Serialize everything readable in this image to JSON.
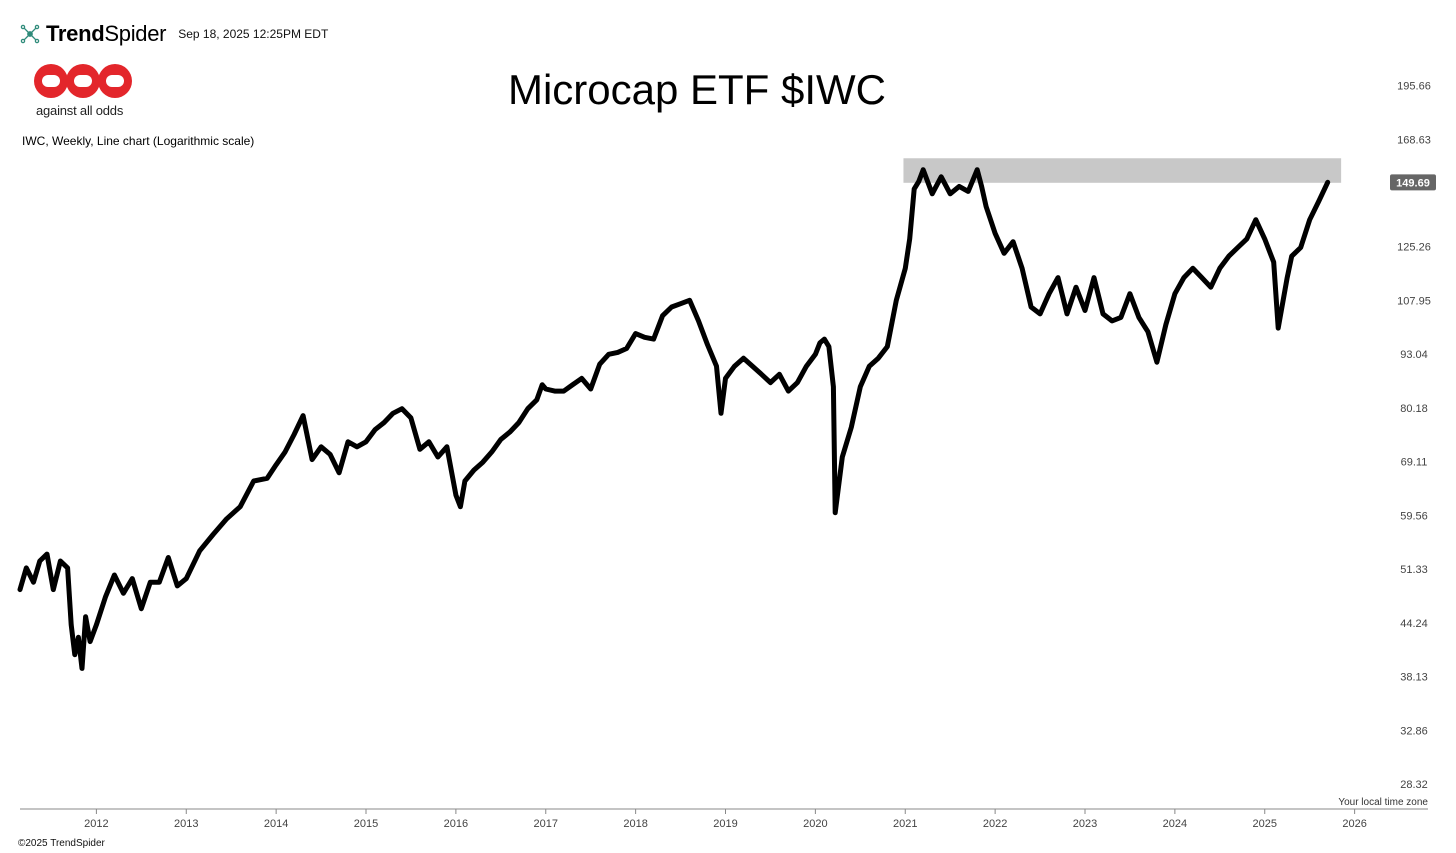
{
  "header": {
    "brand_bold": "Trend",
    "brand_regular": "Spider",
    "date": "Sep 18, 2025 12:25PM EDT",
    "logo_text": "against all odds",
    "logo_color": "#e3262b"
  },
  "footer": {
    "timezone": "Your local time zone",
    "copyright": "©2025 TrendSpider"
  },
  "chart_data": {
    "type": "line",
    "title": "Microcap ETF $IWC",
    "subtitle": "IWC, Weekly, Line chart (Logarithmic scale)",
    "y_scale": "log",
    "ylim": [
      26.5,
      210
    ],
    "y_ticks": [
      "195.66",
      "168.63",
      "125.26",
      "107.95",
      "93.04",
      "80.18",
      "69.11",
      "59.56",
      "51.33",
      "44.24",
      "38.13",
      "32.86",
      "28.32"
    ],
    "x_ticks": [
      "2012",
      "2013",
      "2014",
      "2015",
      "2016",
      "2017",
      "2018",
      "2019",
      "2020",
      "2021",
      "2022",
      "2023",
      "2024",
      "2025",
      "2026"
    ],
    "xlim": [
      2011.15,
      2026.95
    ],
    "last_price": "149.69",
    "line_color": "#000000",
    "badge_color": "#666666",
    "resistance_zone": {
      "x_start": 2020.98,
      "x_end": 2025.85,
      "y_low": 149.5,
      "y_high": 160.0,
      "color": "#c8c8c8"
    },
    "series": [
      {
        "x": [
          2011.15,
          2011.22,
          2011.3,
          2011.37,
          2011.45,
          2011.52,
          2011.6,
          2011.68,
          2011.72,
          2011.76,
          2011.8,
          2011.84,
          2011.88,
          2011.93,
          2012.0,
          2012.1,
          2012.2,
          2012.3,
          2012.4,
          2012.5,
          2012.6,
          2012.7,
          2012.8,
          2012.9,
          2013.0,
          2013.15,
          2013.3,
          2013.45,
          2013.6,
          2013.75,
          2013.9,
          2014.0,
          2014.1,
          2014.2,
          2014.3,
          2014.4,
          2014.5,
          2014.6,
          2014.7,
          2014.8,
          2014.9,
          2015.0,
          2015.1,
          2015.2,
          2015.3,
          2015.4,
          2015.5,
          2015.6,
          2015.7,
          2015.8,
          2015.9,
          2016.0,
          2016.05,
          2016.1,
          2016.2,
          2016.3,
          2016.4,
          2016.5,
          2016.6,
          2016.7,
          2016.8,
          2016.9,
          2016.96,
          2017.0,
          2017.1,
          2017.2,
          2017.3,
          2017.4,
          2017.5,
          2017.6,
          2017.7,
          2017.8,
          2017.9,
          2018.0,
          2018.1,
          2018.2,
          2018.3,
          2018.4,
          2018.5,
          2018.6,
          2018.7,
          2018.8,
          2018.9,
          2018.95,
          2019.0,
          2019.1,
          2019.2,
          2019.3,
          2019.4,
          2019.5,
          2019.6,
          2019.7,
          2019.8,
          2019.9,
          2020.0,
          2020.05,
          2020.1,
          2020.15,
          2020.2,
          2020.22,
          2020.3,
          2020.4,
          2020.5,
          2020.6,
          2020.7,
          2020.8,
          2020.9,
          2021.0,
          2021.05,
          2021.1,
          2021.15,
          2021.2,
          2021.3,
          2021.4,
          2021.5,
          2021.6,
          2021.7,
          2021.8,
          2021.85,
          2021.9,
          2022.0,
          2022.1,
          2022.2,
          2022.3,
          2022.4,
          2022.5,
          2022.6,
          2022.7,
          2022.8,
          2022.9,
          2023.0,
          2023.1,
          2023.2,
          2023.3,
          2023.4,
          2023.5,
          2023.6,
          2023.7,
          2023.8,
          2023.9,
          2024.0,
          2024.1,
          2024.2,
          2024.3,
          2024.4,
          2024.5,
          2024.6,
          2024.7,
          2024.8,
          2024.9,
          2025.0,
          2025.1,
          2025.15,
          2025.25,
          2025.3,
          2025.4,
          2025.5,
          2025.6,
          2025.7
        ],
        "values": [
          48.5,
          51.5,
          49.5,
          52.5,
          53.5,
          48.5,
          52.5,
          51.5,
          44.0,
          40.5,
          42.5,
          39.0,
          45.0,
          42.0,
          44.0,
          47.5,
          50.5,
          48.0,
          50.0,
          46.0,
          49.5,
          49.5,
          53.0,
          49.0,
          50.0,
          54.0,
          56.5,
          59.0,
          61.0,
          65.5,
          66.0,
          68.5,
          71.0,
          74.5,
          78.5,
          69.5,
          72.0,
          70.5,
          67.0,
          73.0,
          72.0,
          73.0,
          75.5,
          77.0,
          79.0,
          80.0,
          78.0,
          71.5,
          73.0,
          70.0,
          72.0,
          63.0,
          61.0,
          65.5,
          67.5,
          69.0,
          71.0,
          73.5,
          75.0,
          77.0,
          80.0,
          82.0,
          85.5,
          84.5,
          84.0,
          84.0,
          85.5,
          87.0,
          84.5,
          90.5,
          93.0,
          93.5,
          94.5,
          98.5,
          97.5,
          97.0,
          103.5,
          106.0,
          107.0,
          108.0,
          102.0,
          95.5,
          90.0,
          79.0,
          87.0,
          90.0,
          92.0,
          90.0,
          88.0,
          86.0,
          88.0,
          84.0,
          86.0,
          90.0,
          93.0,
          96.0,
          97.0,
          95.0,
          85.0,
          60.0,
          70.0,
          76.0,
          85.0,
          90.0,
          92.0,
          95.0,
          108.0,
          118.0,
          128.0,
          147.0,
          150.0,
          155.0,
          145.0,
          152.0,
          145.0,
          148.0,
          146.0,
          155.0,
          148.0,
          140.0,
          130.0,
          123.0,
          127.0,
          118.0,
          106.0,
          104.0,
          110.0,
          115.0,
          104.0,
          112.0,
          105.0,
          115.0,
          104.0,
          102.0,
          103.0,
          110.0,
          103.0,
          99.0,
          91.0,
          101.0,
          110.0,
          115.0,
          118.0,
          115.0,
          112.0,
          118.0,
          122.0,
          125.0,
          128.0,
          135.0,
          128.0,
          120.0,
          100.0,
          115.0,
          122.0,
          125.0,
          135.0,
          142.0,
          149.7
        ]
      }
    ]
  }
}
